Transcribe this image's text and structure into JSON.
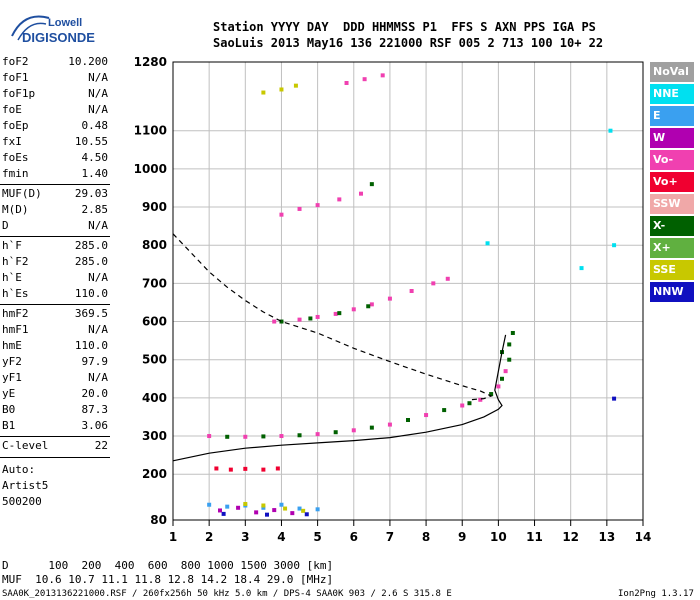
{
  "logo": {
    "line1": "Lowell",
    "line2": "DIGISONDE"
  },
  "header": {
    "line1": "Station YYYY DAY  DDD HHMMSS P1  FFS S AXN PPS IGA PS",
    "line2": "SaoLuis 2013 May16 136 221000 RSF 005 2 713 100 10+ 22"
  },
  "params": [
    {
      "label": "foF2",
      "value": "10.200"
    },
    {
      "label": "foF1",
      "value": "N/A"
    },
    {
      "label": "foF1p",
      "value": "N/A"
    },
    {
      "label": "foE",
      "value": "N/A"
    },
    {
      "label": "foEp",
      "value": "0.48"
    },
    {
      "label": "fxI",
      "value": "10.55"
    },
    {
      "label": "foEs",
      "value": "4.50"
    },
    {
      "label": "fmin",
      "value": "1.40"
    },
    {
      "label": "MUF(D)",
      "value": "29.03"
    },
    {
      "label": "M(D)",
      "value": "2.85"
    },
    {
      "label": "D",
      "value": "N/A"
    },
    {
      "label": "h`F",
      "value": "285.0"
    },
    {
      "label": "h`F2",
      "value": "285.0"
    },
    {
      "label": "h`E",
      "value": "N/A"
    },
    {
      "label": "h`Es",
      "value": "110.0"
    },
    {
      "label": "hmF2",
      "value": "369.5"
    },
    {
      "label": "hmF1",
      "value": "N/A"
    },
    {
      "label": "hmE",
      "value": "110.0"
    },
    {
      "label": "yF2",
      "value": "97.9"
    },
    {
      "label": "yF1",
      "value": "N/A"
    },
    {
      "label": "yE",
      "value": "20.0"
    },
    {
      "label": "B0",
      "value": "87.3"
    },
    {
      "label": "B1",
      "value": "3.06"
    },
    {
      "label": "C-level",
      "value": "22"
    }
  ],
  "auto": {
    "line1": "Auto:",
    "line2": "Artist5",
    "line3": "500200"
  },
  "legend": [
    {
      "label": "NoVal",
      "color": "#a0a0a0"
    },
    {
      "label": "NNE",
      "color": "#00e0f0"
    },
    {
      "label": "E",
      "color": "#3aa0f0"
    },
    {
      "label": "W",
      "color": "#b000b0"
    },
    {
      "label": "Vo-",
      "color": "#f040b0"
    },
    {
      "label": "Vo+",
      "color": "#f00030"
    },
    {
      "label": "SSW",
      "color": "#f0a8a8"
    },
    {
      "label": "X-",
      "color": "#006000"
    },
    {
      "label": "X+",
      "color": "#60b040"
    },
    {
      "label": "SSE",
      "color": "#c8c800"
    },
    {
      "label": "NNW",
      "color": "#1010c0"
    }
  ],
  "chart_data": {
    "type": "scatter",
    "xlim": [
      1,
      14
    ],
    "ylim": [
      80,
      1280
    ],
    "xticks": [
      "1",
      "2",
      "3",
      "4",
      "5",
      "6",
      "7",
      "8",
      "9",
      "10",
      "11",
      "12",
      "13",
      "14"
    ],
    "yticks": [
      "80",
      "200",
      "300",
      "400",
      "500",
      "600",
      "700",
      "800",
      "900",
      "1000",
      "1100",
      "1280"
    ],
    "grid": true,
    "series": [
      {
        "color": "#f040b0",
        "points": [
          [
            2.0,
            300
          ],
          [
            3.0,
            298
          ],
          [
            4.0,
            300
          ],
          [
            5.0,
            305
          ],
          [
            6.0,
            315
          ],
          [
            7.0,
            330
          ],
          [
            8.0,
            355
          ],
          [
            9.0,
            380
          ],
          [
            9.5,
            395
          ],
          [
            10.0,
            430
          ],
          [
            10.2,
            470
          ]
        ]
      },
      {
        "color": "#006000",
        "points": [
          [
            2.5,
            298
          ],
          [
            3.5,
            299
          ],
          [
            4.5,
            302
          ],
          [
            5.5,
            310
          ],
          [
            6.5,
            322
          ],
          [
            7.5,
            342
          ],
          [
            8.5,
            368
          ],
          [
            9.2,
            386
          ],
          [
            9.8,
            410
          ],
          [
            10.1,
            450
          ],
          [
            10.3,
            500
          ]
        ]
      },
      {
        "color": "#f040b0",
        "points": [
          [
            3.8,
            600
          ],
          [
            4.5,
            605
          ],
          [
            5.0,
            612
          ],
          [
            5.5,
            620
          ],
          [
            6.0,
            632
          ],
          [
            6.5,
            645
          ],
          [
            7.0,
            660
          ]
        ]
      },
      {
        "color": "#006000",
        "points": [
          [
            4.0,
            600
          ],
          [
            4.8,
            608
          ],
          [
            5.6,
            622
          ],
          [
            6.4,
            640
          ]
        ]
      },
      {
        "color": "#f040b0",
        "points": [
          [
            7.6,
            680
          ],
          [
            8.2,
            700
          ],
          [
            8.6,
            712
          ]
        ]
      },
      {
        "color": "#f040b0",
        "points": [
          [
            4.0,
            880
          ],
          [
            4.5,
            895
          ],
          [
            5.0,
            905
          ],
          [
            5.6,
            920
          ],
          [
            6.2,
            935
          ]
        ]
      },
      {
        "color": "#c8c800",
        "points": [
          [
            3.5,
            1200
          ],
          [
            4.0,
            1208
          ],
          [
            4.4,
            1218
          ]
        ]
      },
      {
        "color": "#f040b0",
        "points": [
          [
            5.8,
            1225
          ],
          [
            6.3,
            1235
          ],
          [
            6.8,
            1245
          ]
        ]
      },
      {
        "color": "#f00030",
        "points": [
          [
            2.2,
            215
          ],
          [
            2.6,
            212
          ],
          [
            3.0,
            214
          ],
          [
            3.5,
            212
          ],
          [
            3.9,
            215
          ]
        ]
      },
      {
        "color": "#3aa0f0",
        "points": [
          [
            2.0,
            120
          ],
          [
            2.5,
            115
          ],
          [
            3.0,
            118
          ],
          [
            3.5,
            112
          ],
          [
            4.0,
            120
          ],
          [
            4.5,
            110
          ],
          [
            5.0,
            108
          ]
        ]
      },
      {
        "color": "#b000b0",
        "points": [
          [
            2.3,
            105
          ],
          [
            2.8,
            112
          ],
          [
            3.3,
            100
          ],
          [
            3.8,
            106
          ],
          [
            4.3,
            98
          ]
        ]
      },
      {
        "color": "#c8c800",
        "points": [
          [
            3.0,
            122
          ],
          [
            3.5,
            118
          ],
          [
            4.1,
            110
          ],
          [
            4.6,
            104
          ]
        ]
      },
      {
        "color": "#1010c0",
        "points": [
          [
            2.4,
            96
          ],
          [
            3.6,
            94
          ],
          [
            4.7,
            95
          ],
          [
            13.2,
            398
          ]
        ]
      },
      {
        "color": "#00e0f0",
        "points": [
          [
            13.1,
            1100
          ],
          [
            13.2,
            800
          ],
          [
            12.3,
            740
          ],
          [
            9.7,
            805
          ]
        ]
      },
      {
        "color": "#006000",
        "points": [
          [
            6.5,
            960
          ],
          [
            10.4,
            570
          ],
          [
            10.3,
            540
          ],
          [
            10.1,
            520
          ]
        ]
      }
    ],
    "lines": [
      {
        "name": "profile",
        "style": "solid",
        "points": [
          [
            1,
            235
          ],
          [
            2,
            255
          ],
          [
            3,
            268
          ],
          [
            4,
            276
          ],
          [
            5,
            282
          ],
          [
            6,
            288
          ],
          [
            7,
            296
          ],
          [
            8,
            310
          ],
          [
            9,
            330
          ],
          [
            9.6,
            350
          ],
          [
            10.0,
            370
          ],
          [
            10.1,
            380
          ],
          [
            10.0,
            395
          ],
          [
            9.9,
            420
          ],
          [
            10.0,
            470
          ],
          [
            10.1,
            520
          ],
          [
            10.2,
            565
          ]
        ]
      },
      {
        "name": "muf",
        "style": "dashed",
        "points": [
          [
            1,
            830
          ],
          [
            1.5,
            780
          ],
          [
            2,
            730
          ],
          [
            2.5,
            690
          ],
          [
            3,
            655
          ],
          [
            3.5,
            625
          ],
          [
            4,
            600
          ],
          [
            5,
            570
          ],
          [
            6,
            530
          ],
          [
            7,
            495
          ],
          [
            8,
            462
          ],
          [
            9,
            432
          ],
          [
            9.5,
            418
          ],
          [
            9.8,
            405
          ],
          [
            9.6,
            398
          ],
          [
            9.2,
            395
          ]
        ]
      }
    ]
  },
  "footer": {
    "d_line": "D      100  200  400  600  800 1000 1500 3000 [km]",
    "muf_line": "MUF  10.6 10.7 11.1 11.8 12.8 14.2 18.4 29.0 [MHz]",
    "file_line": "SAA0K_2013136221000.RSF / 260fx256h 50 kHz 5.0 km / DPS-4 SAA0K 903 / 2.6 S 315.8 E",
    "version": "Ion2Png 1.3.17"
  }
}
